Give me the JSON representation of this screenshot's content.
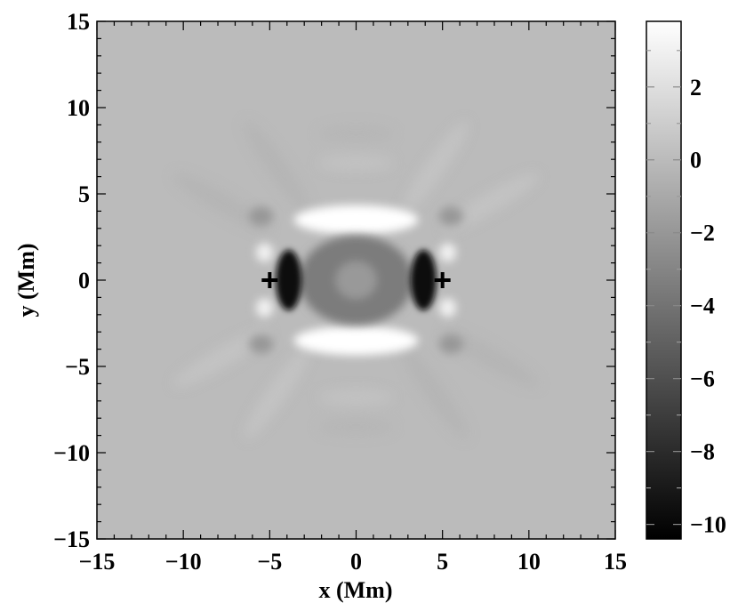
{
  "chart_data": {
    "type": "heatmap",
    "xlabel": "x  (Mm)",
    "ylabel": "y  (Mm)",
    "xlim": [
      -15,
      15
    ],
    "ylim": [
      -15,
      15
    ],
    "x_ticks": [
      -15,
      -10,
      -5,
      0,
      5,
      10,
      15
    ],
    "y_ticks": [
      -15,
      -10,
      -5,
      0,
      5,
      10,
      15
    ],
    "x_tick_labels": [
      "−15",
      "−10",
      "−5",
      "0",
      "5",
      "10",
      "15"
    ],
    "y_tick_labels": [
      "−15",
      "−10",
      "−5",
      "0",
      "5",
      "10",
      "15"
    ],
    "colormap": "grayscale",
    "colorbar": {
      "vmin": -10.4,
      "vmax": 3.8,
      "ticks": [
        2,
        0,
        -2,
        -4,
        -6,
        -8,
        -10
      ],
      "tick_labels": [
        "2",
        "0",
        "−2",
        "−4",
        "−6",
        "−8",
        "−10"
      ]
    },
    "markers": [
      {
        "symbol": "+",
        "x": -5,
        "y": 0
      },
      {
        "symbol": "+",
        "x": 5,
        "y": 0
      }
    ],
    "features": {
      "background_value": 0,
      "central_depression": {
        "x": 0,
        "y": 0,
        "value": -3.5,
        "half_width_x": 3.3,
        "half_width_y": 2.6
      },
      "dark_lobes": [
        {
          "x": -3.9,
          "y": 0,
          "value": -10
        },
        {
          "x": 3.9,
          "y": 0,
          "value": -10
        }
      ],
      "bright_arcs": [
        {
          "x": 0,
          "y": 3.5,
          "value": 3.8
        },
        {
          "x": 0,
          "y": -3.5,
          "value": 3.8
        }
      ]
    }
  }
}
